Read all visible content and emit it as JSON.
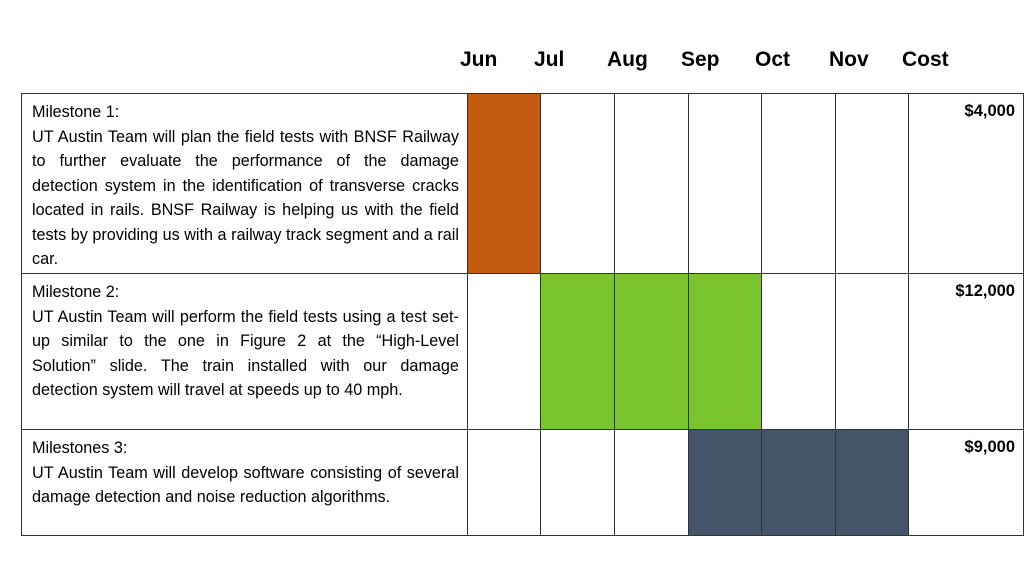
{
  "header": {
    "months": [
      "Jun",
      "Jul",
      "Aug",
      "Sep",
      "Oct",
      "Nov"
    ],
    "cost_label": "Cost"
  },
  "colors": {
    "milestone1": "#c55a11",
    "milestone2": "#7ac52e",
    "milestone3": "#44546a",
    "empty": "#ffffff"
  },
  "milestones": [
    {
      "title": "Milestone 1:",
      "description": "UT Austin Team will plan the field tests with BNSF Railway to further evaluate the performance of the damage detection system in the identification of transverse cracks located in rails. BNSF Railway is helping us with the field tests by providing us with a railway track segment and a rail car.",
      "active_months": [
        "Jun"
      ],
      "color_key": "milestone1",
      "cost": "$4,000"
    },
    {
      "title": "Milestone 2:",
      "description": "UT Austin Team will perform the field tests using a test set-up similar to the one in Figure 2 at the “High-Level Solution” slide. The train installed with our damage detection system will travel at speeds up to 40 mph.",
      "active_months": [
        "Jul",
        "Aug",
        "Sep"
      ],
      "color_key": "milestone2",
      "cost": "$12,000"
    },
    {
      "title": "Milestones 3:",
      "description": "UT Austin Team will develop software consisting of several damage detection and noise reduction algorithms.",
      "active_months": [
        "Sep",
        "Oct",
        "Nov"
      ],
      "color_key": "milestone3",
      "cost": "$9,000"
    }
  ]
}
